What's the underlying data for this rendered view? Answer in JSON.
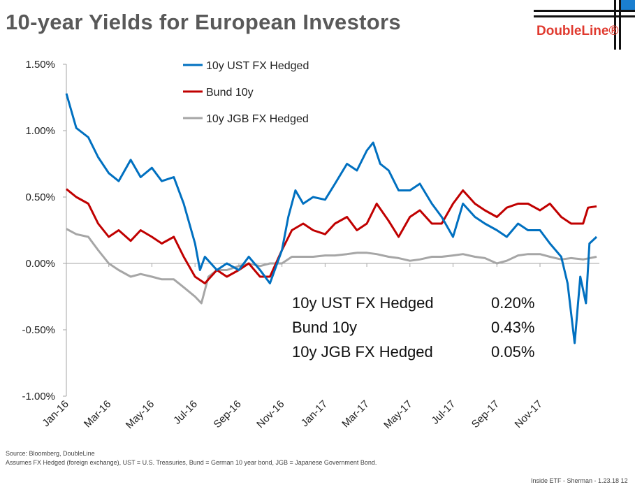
{
  "title": "10-year Yields for European Investors",
  "logo": {
    "text": "DoubleLine®",
    "color": "#e03a2f"
  },
  "source": "Source: Bloomberg, DoubleLine",
  "note": "Assumes FX Hedged (foreign exchange), UST = U.S. Treasuries, Bund = German 10 year bond, JGB = Japanese Government Bond.",
  "footer": "Inside ETF - Sherman - 1.23.18   12",
  "chart_data": {
    "type": "line",
    "title": "",
    "xlabel": "",
    "ylabel": "",
    "ylim": [
      -1.0,
      1.5
    ],
    "yticks": [
      1.5,
      1.0,
      0.5,
      0.0,
      -0.5,
      -1.0
    ],
    "ytick_labels": [
      "1.50%",
      "1.00%",
      "0.50%",
      "0.00%",
      "-0.50%",
      "-1.00%"
    ],
    "xlim": [
      "2016-01-01",
      "2018-01-24"
    ],
    "xticks": [
      "2016-01-01",
      "2016-03-01",
      "2016-05-01",
      "2016-07-01",
      "2016-09-01",
      "2016-11-01",
      "2017-01-01",
      "2017-03-01",
      "2017-05-01",
      "2017-07-01",
      "2017-09-01",
      "2017-11-01"
    ],
    "xtick_labels": [
      "Jan-16",
      "Mar-16",
      "May-16",
      "Jul-16",
      "Sep-16",
      "Nov-16",
      "Jan-17",
      "Mar-17",
      "May-17",
      "Jul-17",
      "Sep-17",
      "Nov-17"
    ],
    "grid": false,
    "legend_placement": "top-center",
    "series": [
      {
        "name": "10y UST FX Hedged",
        "color": "#0070c0",
        "last": "0.20%",
        "points": [
          [
            "2016-01-01",
            1.28
          ],
          [
            "2016-01-08",
            1.15
          ],
          [
            "2016-01-15",
            1.02
          ],
          [
            "2016-02-01",
            0.95
          ],
          [
            "2016-02-15",
            0.8
          ],
          [
            "2016-03-01",
            0.68
          ],
          [
            "2016-03-15",
            0.62
          ],
          [
            "2016-04-01",
            0.78
          ],
          [
            "2016-04-15",
            0.65
          ],
          [
            "2016-05-01",
            0.72
          ],
          [
            "2016-05-15",
            0.62
          ],
          [
            "2016-06-01",
            0.65
          ],
          [
            "2016-06-15",
            0.45
          ],
          [
            "2016-07-01",
            0.15
          ],
          [
            "2016-07-08",
            -0.05
          ],
          [
            "2016-07-15",
            0.05
          ],
          [
            "2016-08-01",
            -0.05
          ],
          [
            "2016-08-15",
            0.0
          ],
          [
            "2016-09-01",
            -0.05
          ],
          [
            "2016-09-15",
            0.05
          ],
          [
            "2016-10-01",
            -0.05
          ],
          [
            "2016-10-15",
            -0.15
          ],
          [
            "2016-11-01",
            0.1
          ],
          [
            "2016-11-10",
            0.35
          ],
          [
            "2016-11-20",
            0.55
          ],
          [
            "2016-12-01",
            0.45
          ],
          [
            "2016-12-15",
            0.5
          ],
          [
            "2017-01-01",
            0.48
          ],
          [
            "2017-01-15",
            0.6
          ],
          [
            "2017-02-01",
            0.75
          ],
          [
            "2017-02-15",
            0.7
          ],
          [
            "2017-03-01",
            0.85
          ],
          [
            "2017-03-10",
            0.91
          ],
          [
            "2017-03-20",
            0.75
          ],
          [
            "2017-04-01",
            0.7
          ],
          [
            "2017-04-15",
            0.55
          ],
          [
            "2017-05-01",
            0.55
          ],
          [
            "2017-05-15",
            0.6
          ],
          [
            "2017-06-01",
            0.45
          ],
          [
            "2017-06-15",
            0.35
          ],
          [
            "2017-07-01",
            0.2
          ],
          [
            "2017-07-15",
            0.45
          ],
          [
            "2017-08-01",
            0.35
          ],
          [
            "2017-08-15",
            0.3
          ],
          [
            "2017-09-01",
            0.25
          ],
          [
            "2017-09-15",
            0.2
          ],
          [
            "2017-10-01",
            0.3
          ],
          [
            "2017-10-15",
            0.25
          ],
          [
            "2017-11-01",
            0.25
          ],
          [
            "2017-11-15",
            0.15
          ],
          [
            "2017-12-01",
            0.05
          ],
          [
            "2017-12-10",
            -0.15
          ],
          [
            "2017-12-20",
            -0.6
          ],
          [
            "2017-12-28",
            -0.1
          ],
          [
            "2018-01-05",
            -0.3
          ],
          [
            "2018-01-10",
            0.15
          ],
          [
            "2018-01-20",
            0.2
          ]
        ]
      },
      {
        "name": "Bund 10y",
        "color": "#c00000",
        "last": "0.43%",
        "points": [
          [
            "2016-01-01",
            0.56
          ],
          [
            "2016-01-15",
            0.5
          ],
          [
            "2016-02-01",
            0.45
          ],
          [
            "2016-02-15",
            0.3
          ],
          [
            "2016-03-01",
            0.2
          ],
          [
            "2016-03-15",
            0.25
          ],
          [
            "2016-04-01",
            0.17
          ],
          [
            "2016-04-15",
            0.25
          ],
          [
            "2016-05-01",
            0.2
          ],
          [
            "2016-05-15",
            0.15
          ],
          [
            "2016-06-01",
            0.2
          ],
          [
            "2016-06-15",
            0.05
          ],
          [
            "2016-07-01",
            -0.1
          ],
          [
            "2016-07-15",
            -0.15
          ],
          [
            "2016-08-01",
            -0.05
          ],
          [
            "2016-08-15",
            -0.1
          ],
          [
            "2016-09-01",
            -0.05
          ],
          [
            "2016-09-15",
            0.0
          ],
          [
            "2016-10-01",
            -0.1
          ],
          [
            "2016-10-15",
            -0.1
          ],
          [
            "2016-11-01",
            0.1
          ],
          [
            "2016-11-15",
            0.25
          ],
          [
            "2016-12-01",
            0.3
          ],
          [
            "2016-12-15",
            0.25
          ],
          [
            "2017-01-01",
            0.22
          ],
          [
            "2017-01-15",
            0.3
          ],
          [
            "2017-02-01",
            0.35
          ],
          [
            "2017-02-15",
            0.25
          ],
          [
            "2017-03-01",
            0.3
          ],
          [
            "2017-03-15",
            0.45
          ],
          [
            "2017-04-01",
            0.32
          ],
          [
            "2017-04-15",
            0.2
          ],
          [
            "2017-05-01",
            0.35
          ],
          [
            "2017-05-15",
            0.4
          ],
          [
            "2017-06-01",
            0.3
          ],
          [
            "2017-06-15",
            0.3
          ],
          [
            "2017-07-01",
            0.45
          ],
          [
            "2017-07-15",
            0.55
          ],
          [
            "2017-08-01",
            0.45
          ],
          [
            "2017-08-15",
            0.4
          ],
          [
            "2017-09-01",
            0.35
          ],
          [
            "2017-09-15",
            0.42
          ],
          [
            "2017-10-01",
            0.45
          ],
          [
            "2017-10-15",
            0.45
          ],
          [
            "2017-11-01",
            0.4
          ],
          [
            "2017-11-15",
            0.45
          ],
          [
            "2017-12-01",
            0.35
          ],
          [
            "2017-12-15",
            0.3
          ],
          [
            "2018-01-01",
            0.3
          ],
          [
            "2018-01-08",
            0.42
          ],
          [
            "2018-01-20",
            0.43
          ]
        ]
      },
      {
        "name": "10y JGB FX Hedged",
        "color": "#a6a6a6",
        "last": "0.05%",
        "points": [
          [
            "2016-01-01",
            0.26
          ],
          [
            "2016-01-15",
            0.22
          ],
          [
            "2016-02-01",
            0.2
          ],
          [
            "2016-02-15",
            0.1
          ],
          [
            "2016-03-01",
            0.0
          ],
          [
            "2016-03-15",
            -0.05
          ],
          [
            "2016-04-01",
            -0.1
          ],
          [
            "2016-04-15",
            -0.08
          ],
          [
            "2016-05-01",
            -0.1
          ],
          [
            "2016-05-15",
            -0.12
          ],
          [
            "2016-06-01",
            -0.12
          ],
          [
            "2016-06-15",
            -0.18
          ],
          [
            "2016-07-01",
            -0.25
          ],
          [
            "2016-07-10",
            -0.3
          ],
          [
            "2016-07-20",
            -0.1
          ],
          [
            "2016-08-01",
            -0.05
          ],
          [
            "2016-08-15",
            -0.05
          ],
          [
            "2016-09-01",
            -0.02
          ],
          [
            "2016-09-15",
            0.0
          ],
          [
            "2016-10-01",
            -0.02
          ],
          [
            "2016-10-15",
            0.0
          ],
          [
            "2016-11-01",
            0.0
          ],
          [
            "2016-11-15",
            0.05
          ],
          [
            "2016-12-01",
            0.05
          ],
          [
            "2016-12-15",
            0.05
          ],
          [
            "2017-01-01",
            0.06
          ],
          [
            "2017-01-15",
            0.06
          ],
          [
            "2017-02-01",
            0.07
          ],
          [
            "2017-02-15",
            0.08
          ],
          [
            "2017-03-01",
            0.08
          ],
          [
            "2017-03-15",
            0.07
          ],
          [
            "2017-04-01",
            0.05
          ],
          [
            "2017-04-15",
            0.04
          ],
          [
            "2017-05-01",
            0.02
          ],
          [
            "2017-05-15",
            0.03
          ],
          [
            "2017-06-01",
            0.05
          ],
          [
            "2017-06-15",
            0.05
          ],
          [
            "2017-07-01",
            0.06
          ],
          [
            "2017-07-15",
            0.07
          ],
          [
            "2017-08-01",
            0.05
          ],
          [
            "2017-08-15",
            0.04
          ],
          [
            "2017-09-01",
            0.0
          ],
          [
            "2017-09-15",
            0.02
          ],
          [
            "2017-10-01",
            0.06
          ],
          [
            "2017-10-15",
            0.07
          ],
          [
            "2017-11-01",
            0.07
          ],
          [
            "2017-11-15",
            0.05
          ],
          [
            "2017-12-01",
            0.03
          ],
          [
            "2017-12-15",
            0.04
          ],
          [
            "2018-01-01",
            0.03
          ],
          [
            "2018-01-20",
            0.05
          ]
        ]
      }
    ]
  }
}
